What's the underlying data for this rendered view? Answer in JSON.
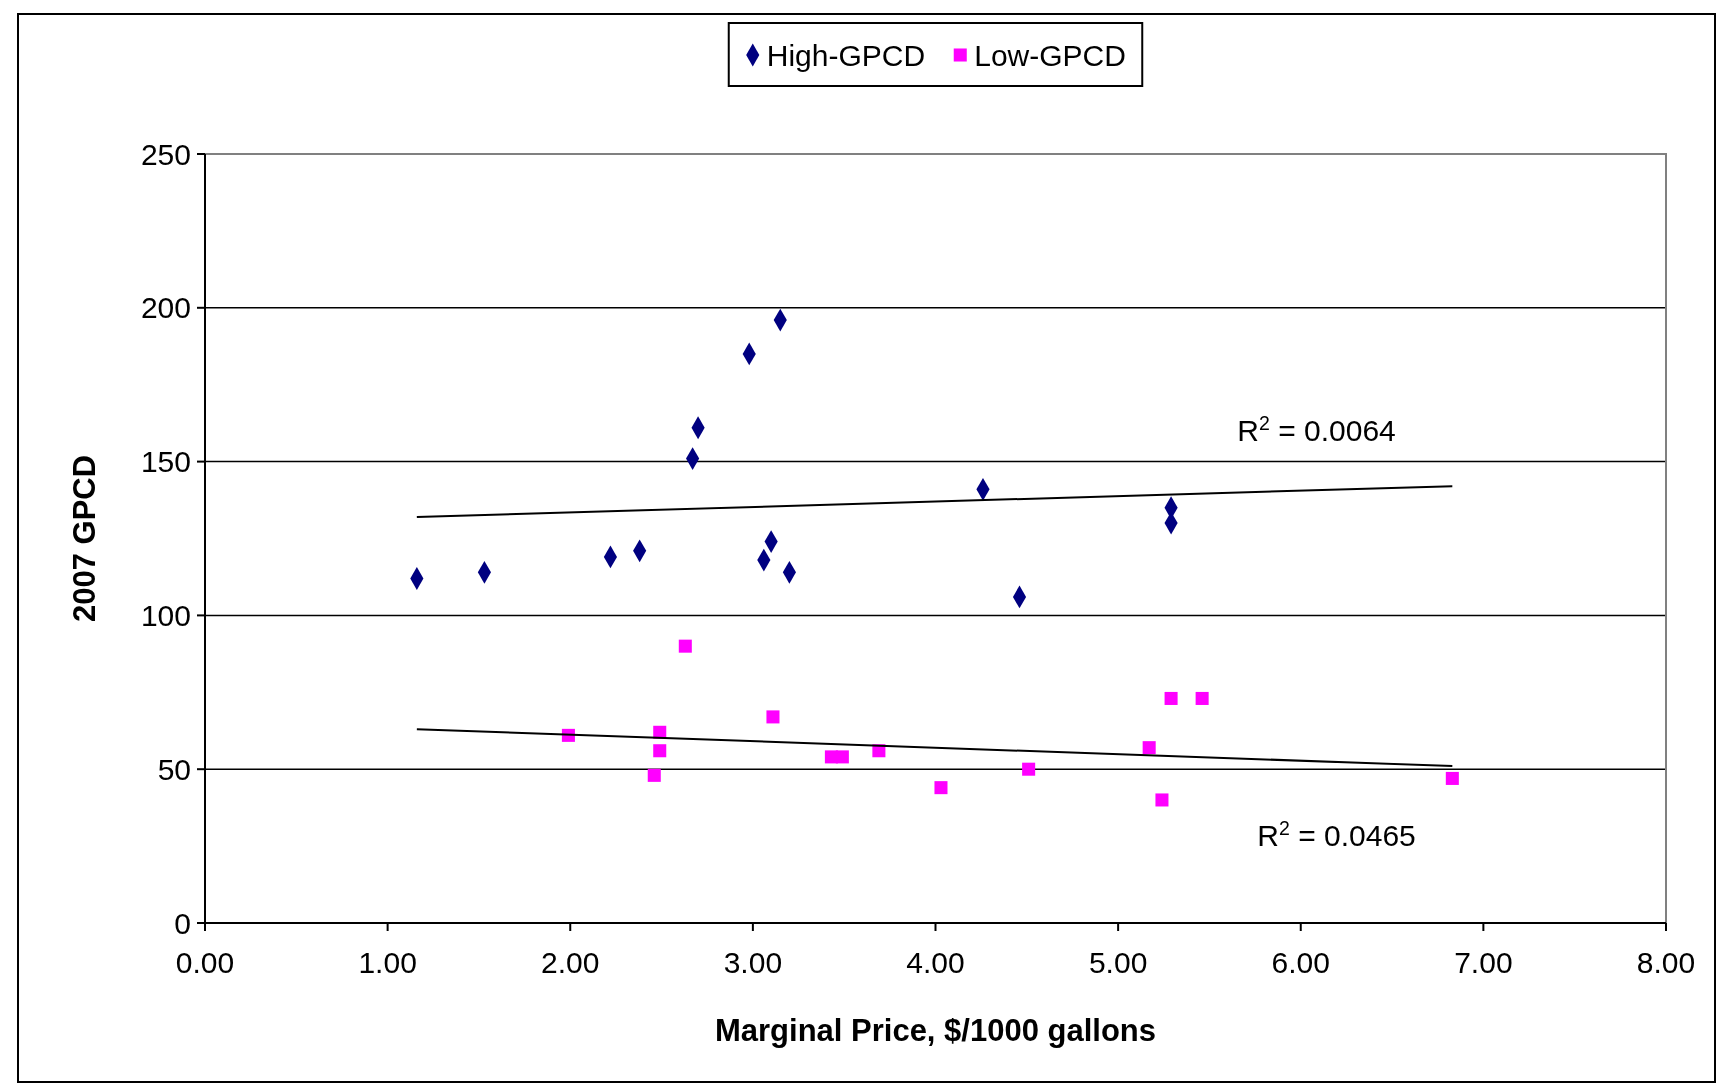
{
  "chart_data": {
    "type": "scatter",
    "xlabel": "Marginal Price, $/1000 gallons",
    "ylabel": "2007 GPCD",
    "xlim": [
      0,
      8
    ],
    "xticks": [
      {
        "value": 0,
        "label": "0.00"
      },
      {
        "value": 1,
        "label": "1.00"
      },
      {
        "value": 2,
        "label": "2.00"
      },
      {
        "value": 3,
        "label": "3.00"
      },
      {
        "value": 4,
        "label": "4.00"
      },
      {
        "value": 5,
        "label": "5.00"
      },
      {
        "value": 6,
        "label": "6.00"
      },
      {
        "value": 7,
        "label": "7.00"
      },
      {
        "value": 8,
        "label": "8.00"
      }
    ],
    "ylim": [
      0,
      250
    ],
    "yticks": [
      0,
      50,
      100,
      150,
      200,
      250
    ],
    "grid": "y",
    "legend": "top",
    "series": [
      {
        "name": "High-GPCD",
        "color": "#000080",
        "marker": "diamond",
        "x": [
          1.16,
          1.53,
          2.22,
          2.38,
          2.67,
          2.7,
          2.98,
          3.15,
          3.06,
          3.1,
          3.2,
          4.26,
          4.46,
          5.29,
          5.29
        ],
        "values": [
          112,
          114,
          119,
          121,
          151,
          161,
          185,
          196,
          118,
          124,
          114,
          141,
          106,
          135,
          130
        ]
      },
      {
        "name": "Low-GPCD",
        "color": "#ff00ff",
        "marker": "square",
        "x": [
          1.99,
          2.49,
          2.49,
          2.46,
          2.63,
          3.11,
          3.43,
          3.49,
          3.69,
          4.03,
          4.51,
          5.17,
          5.29,
          5.46,
          5.24,
          6.83
        ],
        "values": [
          61,
          62,
          56,
          48,
          90,
          67,
          54,
          54,
          56,
          44,
          50,
          57,
          73,
          73,
          40,
          47
        ]
      },
      {
        "type": "line",
        "color": "#000000",
        "marker": "none",
        "x": [
          1.16,
          6.83
        ],
        "values": [
          132,
          142
        ]
      },
      {
        "type": "line",
        "color": "#000000",
        "marker": "none",
        "x": [
          1.16,
          6.83
        ],
        "values": [
          63,
          51
        ]
      }
    ],
    "annotations": [
      "R$^{2}$ = 0.0064",
      "R$^{2}$ = 0.0465"
    ]
  }
}
